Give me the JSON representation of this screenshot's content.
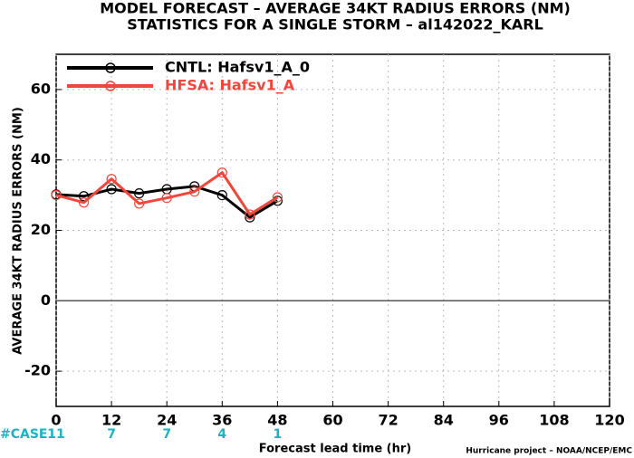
{
  "chart_data": {
    "type": "line",
    "title": "MODEL FORECAST – AVERAGE 34KT RADIUS ERRORS (NM)",
    "subtitle": "STATISTICS FOR A SINGLE STORM – al142022_KARL",
    "x_label": "Forecast lead time (hr)",
    "y_label": "AVERAGE 34KT RADIUS ERRORS (NM)",
    "credit": "Hurricane project – NOAA/NCEP/EMC",
    "x": [
      0,
      6,
      12,
      18,
      24,
      30,
      36,
      42,
      48
    ],
    "series": [
      {
        "name": "CNTL: Hafsv1_A_0",
        "color": "#000000",
        "values": [
          30.2,
          29.7,
          31.7,
          30.5,
          31.7,
          32.5,
          30.0,
          23.7,
          28.4
        ]
      },
      {
        "name": "HFSA: Hafsv1_A",
        "color": "#f0463c",
        "values": [
          30.0,
          27.9,
          34.6,
          27.6,
          29.2,
          31.0,
          36.4,
          24.5,
          29.4
        ]
      }
    ],
    "xlim": [
      0,
      120
    ],
    "xticks": [
      0,
      12,
      24,
      36,
      48,
      60,
      72,
      84,
      96,
      108,
      120
    ],
    "ylim": [
      -30,
      70
    ],
    "yticks": [
      -20,
      0,
      20,
      40,
      60
    ],
    "grid": true,
    "legend": "upper left",
    "case_label": "#CASE",
    "case_x": [
      0,
      12,
      24,
      36,
      48
    ],
    "case_counts": [
      11,
      7,
      7,
      4,
      1
    ]
  }
}
